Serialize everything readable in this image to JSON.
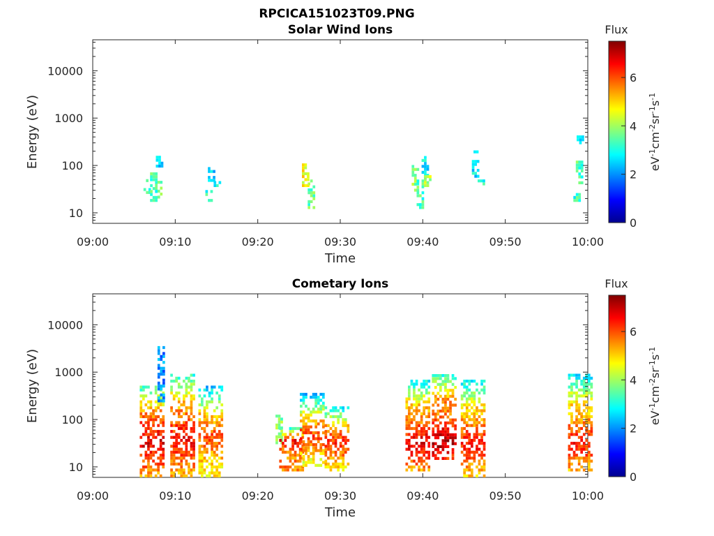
{
  "figure_title": "RPCICA151023T09.PNG",
  "colors": {
    "axis": "#262626",
    "colormap": [
      "#00008f",
      "#0000ff",
      "#0080ff",
      "#00ffff",
      "#80ff80",
      "#ffff00",
      "#ff8000",
      "#ff0000",
      "#800000"
    ]
  },
  "chart_data": [
    {
      "type": "heatmap",
      "title": "Solar Wind Ions",
      "xlabel": "Time",
      "ylabel": "Energy (eV)",
      "x_ticks": [
        "09:00",
        "09:10",
        "09:20",
        "09:30",
        "09:40",
        "09:50",
        "10:00"
      ],
      "x_range_min": [
        0,
        60
      ],
      "y_scale": "log",
      "y_ticks": [
        10,
        100,
        1000,
        10000
      ],
      "ylim": [
        6,
        45000
      ],
      "colorbar": {
        "title": "Flux",
        "label": "eV-1cm-2sr-1s-1",
        "ticks": [
          0,
          2,
          4,
          6
        ],
        "range": [
          0,
          7.5
        ]
      },
      "clusters": [
        {
          "t": 6.5,
          "e_min": 25,
          "e_max": 45,
          "flux": 3.2
        },
        {
          "t": 7.3,
          "e_min": 17,
          "e_max": 70,
          "flux": 3.3
        },
        {
          "t": 7.9,
          "e_min": 20,
          "e_max": 45,
          "flux": 3.7
        },
        {
          "t": 8.0,
          "e_min": 90,
          "e_max": 160,
          "flux": 2.4
        },
        {
          "t": 14.0,
          "e_min": 17,
          "e_max": 28,
          "flux": 3.2
        },
        {
          "t": 14.3,
          "e_min": 45,
          "e_max": 90,
          "flux": 2.6
        },
        {
          "t": 15.0,
          "e_min": 35,
          "e_max": 45,
          "flux": 3.0
        },
        {
          "t": 25.7,
          "e_min": 35,
          "e_max": 105,
          "flux": 4.6
        },
        {
          "t": 26.4,
          "e_min": 12,
          "e_max": 45,
          "flux": 3.6
        },
        {
          "t": 39.0,
          "e_min": 28,
          "e_max": 95,
          "flux": 3.9
        },
        {
          "t": 39.6,
          "e_min": 12,
          "e_max": 55,
          "flux": 3.3
        },
        {
          "t": 40.2,
          "e_min": 50,
          "e_max": 140,
          "flux": 2.8
        },
        {
          "t": 40.5,
          "e_min": 35,
          "e_max": 60,
          "flux": 4.2
        },
        {
          "t": 46.3,
          "e_min": 55,
          "e_max": 120,
          "flux": 2.7
        },
        {
          "t": 46.5,
          "e_min": 180,
          "e_max": 200,
          "flux": 2.3
        },
        {
          "t": 47.0,
          "e_min": 38,
          "e_max": 45,
          "flux": 3.1
        },
        {
          "t": 58.6,
          "e_min": 17,
          "e_max": 25,
          "flux": 3.2
        },
        {
          "t": 58.9,
          "e_min": 40,
          "e_max": 110,
          "flux": 3.4
        },
        {
          "t": 59.0,
          "e_min": 280,
          "e_max": 430,
          "flux": 2.4
        }
      ]
    },
    {
      "type": "heatmap",
      "title": "Cometary Ions",
      "xlabel": "Time",
      "ylabel": "Energy (eV)",
      "x_ticks": [
        "09:00",
        "09:10",
        "09:20",
        "09:30",
        "09:40",
        "09:50",
        "10:00"
      ],
      "x_range_min": [
        0,
        60
      ],
      "y_scale": "log",
      "y_ticks": [
        10,
        100,
        1000,
        10000
      ],
      "ylim": [
        6,
        45000
      ],
      "colorbar": {
        "title": "Flux",
        "label": "eV-1cm-2sr-1s-1",
        "ticks": [
          0,
          2,
          4,
          6
        ],
        "range": [
          0,
          7.5
        ]
      },
      "clusters": [
        {
          "t": 7.1,
          "e_min": 6,
          "e_max": 500,
          "flux": 5.5,
          "peak": 6.8,
          "peak_e": 30
        },
        {
          "t": 8.2,
          "e_min": 230,
          "e_max": 3200,
          "flux": 2.0
        },
        {
          "t": 10.8,
          "e_min": 6,
          "e_max": 900,
          "flux": 5.3,
          "peak": 6.6,
          "peak_e": 35
        },
        {
          "t": 14.2,
          "e_min": 6,
          "e_max": 450,
          "flux": 4.8,
          "peak": 6.0,
          "peak_e": 40
        },
        {
          "t": 22.5,
          "e_min": 30,
          "e_max": 110,
          "flux": 3.8
        },
        {
          "t": 24.0,
          "e_min": 8,
          "e_max": 60,
          "flux": 5.6,
          "peak": 6.7,
          "peak_e": 35
        },
        {
          "t": 26.5,
          "e_min": 10,
          "e_max": 330,
          "flux": 4.6,
          "peak": 6.2,
          "peak_e": 40
        },
        {
          "t": 29.5,
          "e_min": 8,
          "e_max": 180,
          "flux": 5.0,
          "peak": 6.3,
          "peak_e": 30
        },
        {
          "t": 39.3,
          "e_min": 8,
          "e_max": 600,
          "flux": 5.3,
          "peak": 6.8,
          "peak_e": 30
        },
        {
          "t": 42.5,
          "e_min": 14,
          "e_max": 800,
          "flux": 5.6,
          "peak": 7.2,
          "peak_e": 32
        },
        {
          "t": 46.0,
          "e_min": 6,
          "e_max": 650,
          "flux": 5.0,
          "peak": 6.5,
          "peak_e": 28
        },
        {
          "t": 59.0,
          "e_min": 8,
          "e_max": 800,
          "flux": 5.0,
          "peak": 6.5,
          "peak_e": 30
        }
      ]
    }
  ]
}
